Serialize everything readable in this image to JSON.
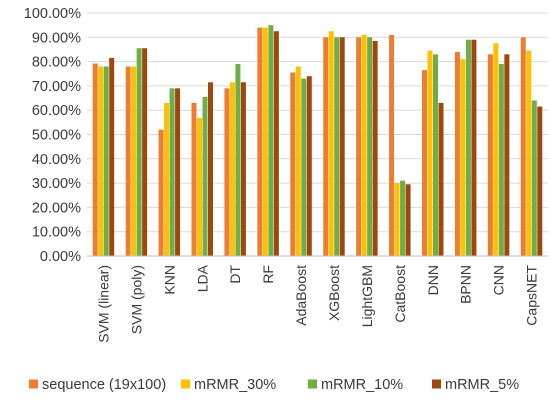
{
  "chart_data": {
    "type": "bar",
    "title": "",
    "xlabel": "",
    "ylabel": "",
    "ylim": [
      0,
      100
    ],
    "yticks": [
      "0.00%",
      "10.00%",
      "20.00%",
      "30.00%",
      "40.00%",
      "50.00%",
      "60.00%",
      "70.00%",
      "80.00%",
      "90.00%",
      "100.00%"
    ],
    "grid": true,
    "legend_position": "bottom",
    "categories": [
      "SVM (linear)",
      "SVM (poly)",
      "KNN",
      "LDA",
      "DT",
      "RF",
      "AdaBoost",
      "XGBoost",
      "LightGBM",
      "CatBoost",
      "DNN",
      "BPNN",
      "CNN",
      "CapsNET"
    ],
    "series": [
      {
        "name": "sequence (19x100)",
        "color": "#ED7D31",
        "values": [
          79.2,
          78.0,
          52.0,
          63.0,
          69.0,
          94.0,
          75.5,
          90.0,
          90.0,
          91.0,
          76.5,
          84.0,
          83.0,
          90.0
        ]
      },
      {
        "name": "mRMR_30%",
        "color": "#FFC000",
        "values": [
          78.0,
          78.0,
          63.0,
          56.8,
          71.5,
          94.0,
          78.0,
          92.5,
          91.0,
          30.0,
          84.5,
          81.0,
          87.5,
          84.5
        ]
      },
      {
        "name": "mRMR_10%",
        "color": "#70AD47",
        "values": [
          78.0,
          85.5,
          69.0,
          65.5,
          79.0,
          95.0,
          73.0,
          90.0,
          90.0,
          31.0,
          83.0,
          89.0,
          79.0,
          64.0
        ]
      },
      {
        "name": "mRMR_5%",
        "color": "#9E480E",
        "values": [
          81.5,
          85.5,
          69.0,
          71.5,
          71.5,
          92.5,
          74.0,
          90.0,
          88.5,
          29.5,
          63.0,
          89.0,
          83.0,
          61.5
        ]
      }
    ]
  }
}
